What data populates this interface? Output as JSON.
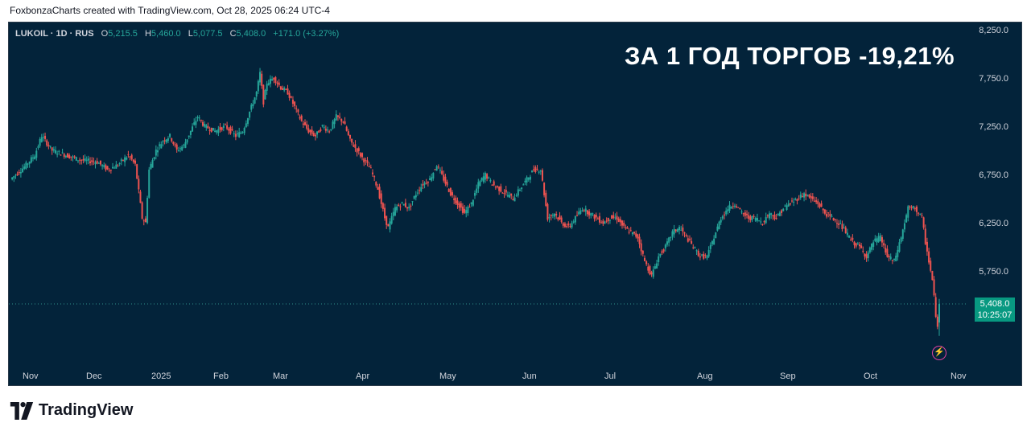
{
  "caption": "FoxbonzaCharts created with TradingView.com, Oct 28, 2025 06:24 UTC-4",
  "legend": {
    "symbol": "LUKOIL · 1D · RUS",
    "open_label": "O",
    "open": "5,215.5",
    "high_label": "H",
    "high": "5,460.0",
    "low_label": "L",
    "low": "5,077.5",
    "close_label": "C",
    "close": "5,408.0",
    "change": "+171.0 (+3.27%)"
  },
  "headline": "ЗА 1 ГОД ТОРГОВ -19,21%",
  "price_tag": {
    "price": "5,408.0",
    "countdown": "10:25:07"
  },
  "brand": "TradingView",
  "colors": {
    "background": "#03233a",
    "up": "#26a69a",
    "down": "#ef5350",
    "tag": "#089981"
  },
  "chart_data": {
    "type": "candlestick",
    "y_axis_ticks": [
      8250,
      7750,
      7250,
      6750,
      6250,
      5750
    ],
    "y_axis_tick_labels": [
      "8,250.0",
      "7,750.0",
      "7,250.0",
      "6,750.0",
      "6,250.0",
      "5,750.0"
    ],
    "ylim": [
      4900,
      8300
    ],
    "x_axis_tick_labels": [
      "Nov",
      "Dec",
      "2025",
      "Feb",
      "Mar",
      "Apr",
      "May",
      "Jun",
      "Jul",
      "Aug",
      "Sep",
      "Oct",
      "Nov"
    ],
    "last_price": 5408.0,
    "path": [
      [
        0,
        6700
      ],
      [
        8,
        6830
      ],
      [
        14,
        6950
      ],
      [
        18,
        7150
      ],
      [
        24,
        7000
      ],
      [
        32,
        6950
      ],
      [
        40,
        6900
      ],
      [
        50,
        6880
      ],
      [
        56,
        6800
      ],
      [
        62,
        6850
      ],
      [
        68,
        6950
      ],
      [
        72,
        6850
      ],
      [
        76,
        6300
      ],
      [
        78,
        6250
      ],
      [
        80,
        6800
      ],
      [
        84,
        7000
      ],
      [
        88,
        7100
      ],
      [
        92,
        7150
      ],
      [
        96,
        7000
      ],
      [
        100,
        7050
      ],
      [
        104,
        7200
      ],
      [
        108,
        7350
      ],
      [
        112,
        7250
      ],
      [
        118,
        7200
      ],
      [
        124,
        7250
      ],
      [
        130,
        7150
      ],
      [
        134,
        7200
      ],
      [
        138,
        7400
      ],
      [
        142,
        7600
      ],
      [
        144,
        7800
      ],
      [
        146,
        7500
      ],
      [
        148,
        7700
      ],
      [
        152,
        7750
      ],
      [
        156,
        7650
      ],
      [
        160,
        7600
      ],
      [
        164,
        7450
      ],
      [
        168,
        7300
      ],
      [
        172,
        7200
      ],
      [
        176,
        7150
      ],
      [
        180,
        7250
      ],
      [
        184,
        7200
      ],
      [
        188,
        7350
      ],
      [
        192,
        7300
      ],
      [
        196,
        7100
      ],
      [
        200,
        7000
      ],
      [
        204,
        6900
      ],
      [
        208,
        6800
      ],
      [
        212,
        6600
      ],
      [
        216,
        6300
      ],
      [
        218,
        6200
      ],
      [
        222,
        6400
      ],
      [
        226,
        6450
      ],
      [
        230,
        6400
      ],
      [
        234,
        6550
      ],
      [
        238,
        6650
      ],
      [
        242,
        6700
      ],
      [
        246,
        6850
      ],
      [
        250,
        6700
      ],
      [
        254,
        6550
      ],
      [
        258,
        6450
      ],
      [
        262,
        6350
      ],
      [
        266,
        6450
      ],
      [
        270,
        6650
      ],
      [
        274,
        6750
      ],
      [
        278,
        6650
      ],
      [
        282,
        6600
      ],
      [
        286,
        6550
      ],
      [
        290,
        6500
      ],
      [
        294,
        6600
      ],
      [
        298,
        6700
      ],
      [
        302,
        6800
      ],
      [
        306,
        6800
      ],
      [
        310,
        6300
      ],
      [
        314,
        6350
      ],
      [
        318,
        6250
      ],
      [
        322,
        6200
      ],
      [
        326,
        6300
      ],
      [
        330,
        6400
      ],
      [
        334,
        6350
      ],
      [
        338,
        6300
      ],
      [
        342,
        6250
      ],
      [
        346,
        6300
      ],
      [
        350,
        6300
      ],
      [
        354,
        6200
      ],
      [
        358,
        6150
      ],
      [
        362,
        6100
      ],
      [
        366,
        5850
      ],
      [
        370,
        5700
      ],
      [
        374,
        5900
      ],
      [
        378,
        6000
      ],
      [
        382,
        6150
      ],
      [
        386,
        6200
      ],
      [
        390,
        6100
      ],
      [
        394,
        6000
      ],
      [
        398,
        5900
      ],
      [
        402,
        5900
      ],
      [
        406,
        6100
      ],
      [
        410,
        6300
      ],
      [
        414,
        6400
      ],
      [
        418,
        6450
      ],
      [
        422,
        6350
      ],
      [
        426,
        6300
      ],
      [
        430,
        6300
      ],
      [
        434,
        6250
      ],
      [
        438,
        6350
      ],
      [
        442,
        6300
      ],
      [
        446,
        6400
      ],
      [
        450,
        6450
      ],
      [
        454,
        6500
      ],
      [
        458,
        6550
      ],
      [
        462,
        6500
      ],
      [
        466,
        6450
      ],
      [
        470,
        6350
      ],
      [
        474,
        6300
      ],
      [
        478,
        6250
      ],
      [
        482,
        6150
      ],
      [
        486,
        6050
      ],
      [
        490,
        6000
      ],
      [
        494,
        5900
      ],
      [
        498,
        6050
      ],
      [
        502,
        6100
      ],
      [
        506,
        5900
      ],
      [
        510,
        5850
      ],
      [
        514,
        6100
      ],
      [
        518,
        6400
      ],
      [
        522,
        6400
      ],
      [
        526,
        6300
      ],
      [
        528,
        6050
      ],
      [
        530,
        5850
      ],
      [
        532,
        5650
      ],
      [
        534,
        5300
      ],
      [
        535,
        5150
      ],
      [
        536,
        5408
      ]
    ]
  }
}
